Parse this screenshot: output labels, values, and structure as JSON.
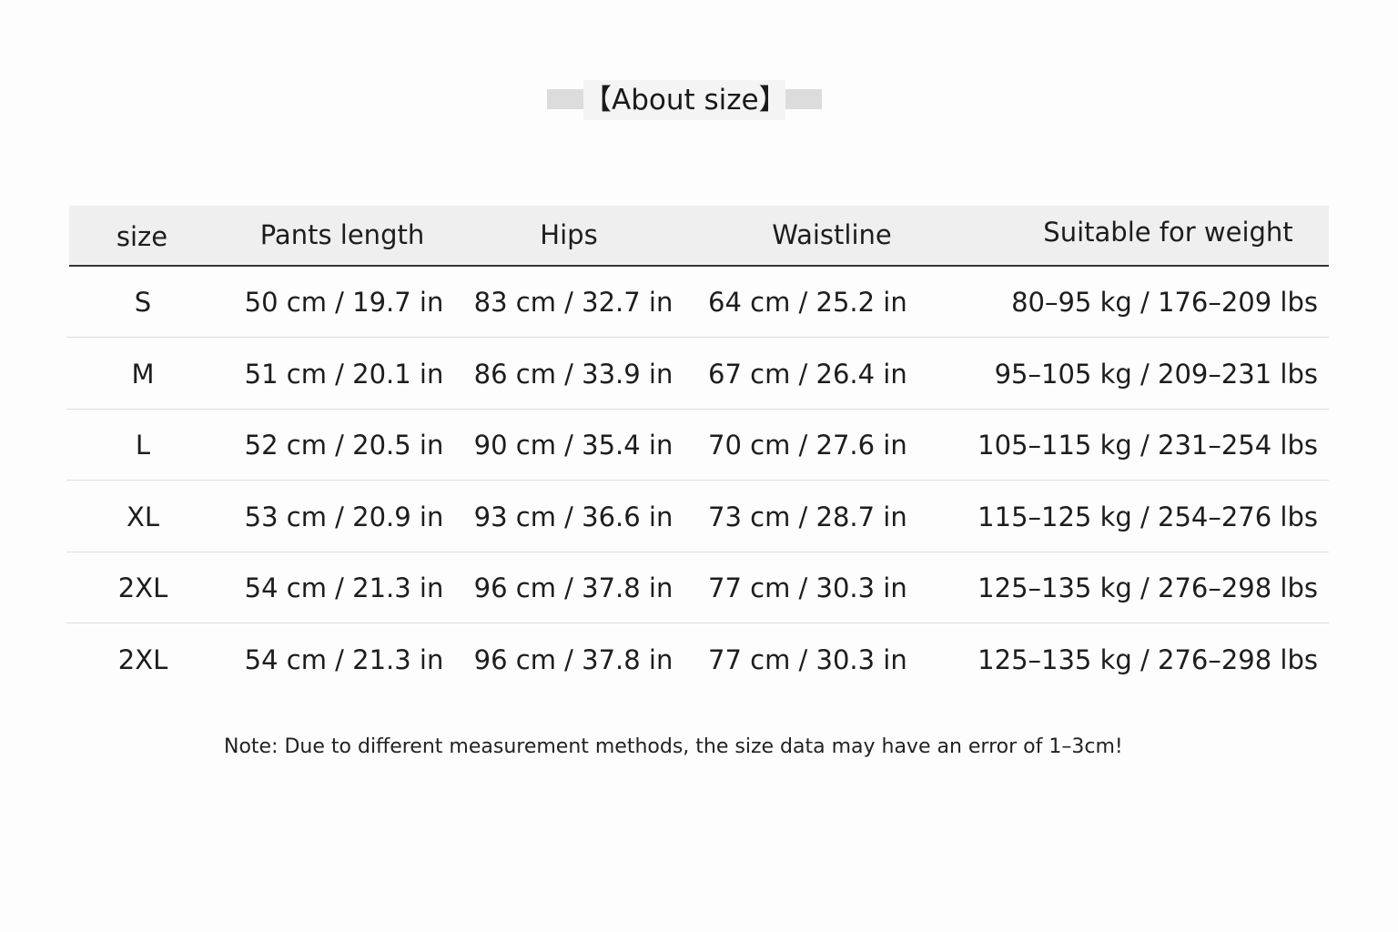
{
  "title": "【About size】",
  "table": {
    "headers": [
      "size",
      "Pants length",
      "Hips",
      "Waistline",
      "Suitable for weight"
    ],
    "rows": [
      [
        "S",
        "50 cm / 19.7 in",
        "83 cm / 32.7 in",
        "64 cm / 25.2 in",
        "80–95 kg / 176–209 lbs"
      ],
      [
        "M",
        "51 cm / 20.1 in",
        "86 cm / 33.9 in",
        "67 cm / 26.4 in",
        "95–105 kg / 209–231 lbs"
      ],
      [
        "L",
        "52 cm / 20.5 in",
        "90 cm / 35.4 in",
        "70 cm / 27.6 in",
        "105–115 kg / 231–254 lbs"
      ],
      [
        "XL",
        "53 cm / 20.9 in",
        "93 cm / 36.6 in",
        "73 cm / 28.7 in",
        "115–125 kg / 254–276 lbs"
      ],
      [
        "2XL",
        "54 cm / 21.3 in",
        "96 cm / 37.8 in",
        "77 cm / 30.3 in",
        "125–135 kg / 276–298 lbs"
      ],
      [
        "2XL",
        "54 cm / 21.3 in",
        "96 cm / 37.8 in",
        "77 cm / 30.3 in",
        "125–135 kg / 276–298 lbs"
      ]
    ]
  },
  "note": "Note:  Due to different measurement methods, the size data may have an error of 1–3cm!"
}
